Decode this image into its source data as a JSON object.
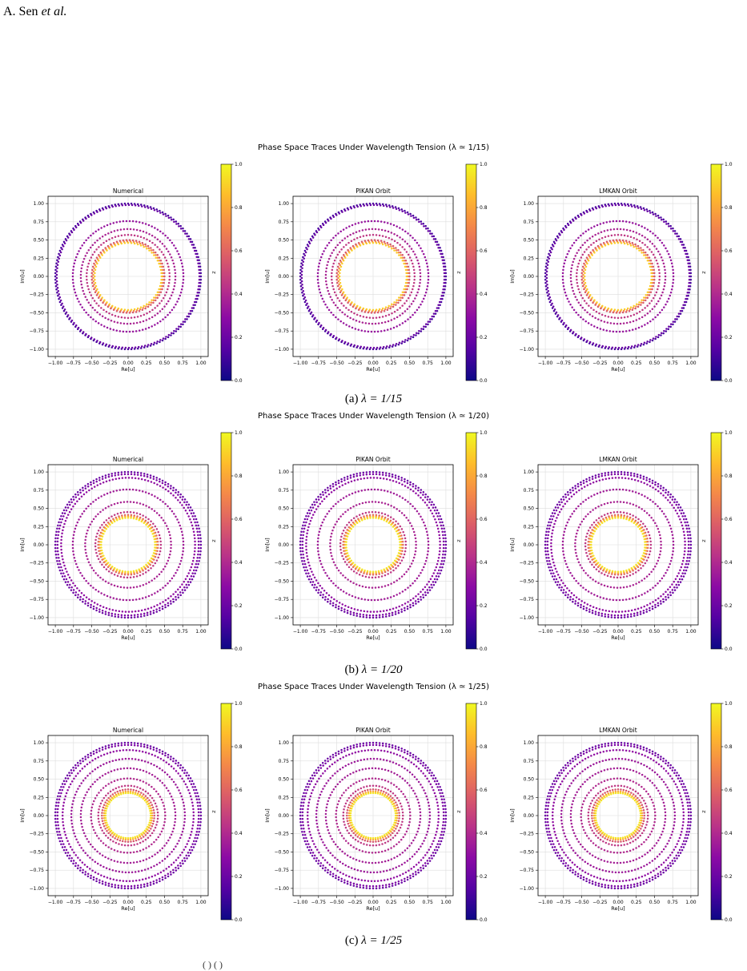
{
  "header": {
    "author_prefix": "A. Sen ",
    "author_suffix": "et al."
  },
  "colors": {
    "colormap": "plasma",
    "grid": "#dddddd"
  },
  "panel_titles": [
    "Numerical",
    "PIKAN Orbit",
    "LMKAN Orbit"
  ],
  "axis": {
    "xlabel": "Re[u]",
    "ylabel": "Im[u]",
    "colorbar_label": "z",
    "xticks": [
      "−1.00",
      "−0.75",
      "−0.50",
      "−0.25",
      "0.00",
      "0.25",
      "0.50",
      "0.75",
      "1.00"
    ],
    "yticks": [
      "1.00",
      "0.75",
      "0.50",
      "0.25",
      "0.00",
      "−0.25",
      "−0.50",
      "−0.75",
      "−1.00"
    ],
    "cbticks": [
      "1.0",
      "0.8",
      "0.6",
      "0.4",
      "0.2",
      "0.0"
    ]
  },
  "rows": [
    {
      "title": "Phase Space Traces Under Wavelength Tension (λ ≃ 1/15)",
      "caption_label": "(a) ",
      "caption_math": "λ = 1/15"
    },
    {
      "title": "Phase Space Traces Under Wavelength Tension (λ ≃ 1/20)",
      "caption_label": "(b) ",
      "caption_math": "λ = 1/20"
    },
    {
      "title": "Phase Space Traces Under Wavelength Tension (λ ≃ 1/25)",
      "caption_label": "(c) ",
      "caption_math": "λ = 1/25"
    }
  ],
  "footer_fragment": "( ) ( )",
  "chart_data": [
    {
      "type": "scatter",
      "title": "Numerical",
      "xlabel": "Re[u]",
      "ylabel": "Im[u]",
      "colorbar": "z",
      "xlim": [
        -1.1,
        1.1
      ],
      "ylim": [
        -1.1,
        1.1
      ],
      "grid": true,
      "rings": [
        {
          "r": 1.0,
          "z": 0.12
        },
        {
          "r": 0.98,
          "z": 0.2
        },
        {
          "r": 0.76,
          "z": 0.32
        },
        {
          "r": 0.65,
          "z": 0.38
        },
        {
          "r": 0.57,
          "z": 0.45
        },
        {
          "r": 0.5,
          "z": 0.55
        },
        {
          "r": 0.48,
          "z": 0.72
        },
        {
          "r": 0.46,
          "z": 0.9
        }
      ]
    },
    {
      "type": "scatter",
      "title": "PIKAN Orbit",
      "xlabel": "Re[u]",
      "ylabel": "Im[u]",
      "colorbar": "z",
      "xlim": [
        -1.1,
        1.1
      ],
      "ylim": [
        -1.1,
        1.1
      ],
      "grid": true,
      "rings": [
        {
          "r": 1.0,
          "z": 0.12
        },
        {
          "r": 0.98,
          "z": 0.2
        },
        {
          "r": 0.76,
          "z": 0.32
        },
        {
          "r": 0.65,
          "z": 0.38
        },
        {
          "r": 0.57,
          "z": 0.45
        },
        {
          "r": 0.5,
          "z": 0.55
        },
        {
          "r": 0.48,
          "z": 0.72
        },
        {
          "r": 0.46,
          "z": 0.9
        }
      ]
    },
    {
      "type": "scatter",
      "title": "LMKAN Orbit",
      "xlabel": "Re[u]",
      "ylabel": "Im[u]",
      "colorbar": "z",
      "xlim": [
        -1.1,
        1.1
      ],
      "ylim": [
        -1.1,
        1.1
      ],
      "grid": true,
      "rings": [
        {
          "r": 1.0,
          "z": 0.12
        },
        {
          "r": 0.98,
          "z": 0.2
        },
        {
          "r": 0.76,
          "z": 0.32
        },
        {
          "r": 0.65,
          "z": 0.38
        },
        {
          "r": 0.57,
          "z": 0.45
        },
        {
          "r": 0.5,
          "z": 0.55
        },
        {
          "r": 0.48,
          "z": 0.72
        },
        {
          "r": 0.46,
          "z": 0.9
        }
      ]
    },
    {
      "type": "scatter",
      "title": "Numerical",
      "xlabel": "Re[u]",
      "ylabel": "Im[u]",
      "colorbar": "z",
      "xlim": [
        -1.1,
        1.1
      ],
      "ylim": [
        -1.1,
        1.1
      ],
      "grid": true,
      "rings": [
        {
          "r": 1.0,
          "z": 0.2
        },
        {
          "r": 0.97,
          "z": 0.25
        },
        {
          "r": 0.92,
          "z": 0.3
        },
        {
          "r": 0.76,
          "z": 0.35
        },
        {
          "r": 0.59,
          "z": 0.38
        },
        {
          "r": 0.45,
          "z": 0.45
        },
        {
          "r": 0.41,
          "z": 0.6
        },
        {
          "r": 0.39,
          "z": 0.8
        },
        {
          "r": 0.37,
          "z": 0.95
        }
      ]
    },
    {
      "type": "scatter",
      "title": "PIKAN Orbit",
      "xlabel": "Re[u]",
      "ylabel": "Im[u]",
      "colorbar": "z",
      "xlim": [
        -1.1,
        1.1
      ],
      "ylim": [
        -1.1,
        1.1
      ],
      "grid": true,
      "rings": [
        {
          "r": 1.0,
          "z": 0.2
        },
        {
          "r": 0.97,
          "z": 0.25
        },
        {
          "r": 0.92,
          "z": 0.3
        },
        {
          "r": 0.76,
          "z": 0.35
        },
        {
          "r": 0.59,
          "z": 0.38
        },
        {
          "r": 0.45,
          "z": 0.45
        },
        {
          "r": 0.41,
          "z": 0.6
        },
        {
          "r": 0.39,
          "z": 0.8
        },
        {
          "r": 0.37,
          "z": 0.95
        }
      ]
    },
    {
      "type": "scatter",
      "title": "LMKAN Orbit",
      "xlabel": "Re[u]",
      "ylabel": "Im[u]",
      "colorbar": "z",
      "xlim": [
        -1.1,
        1.1
      ],
      "ylim": [
        -1.1,
        1.1
      ],
      "grid": true,
      "rings": [
        {
          "r": 1.0,
          "z": 0.2
        },
        {
          "r": 0.97,
          "z": 0.25
        },
        {
          "r": 0.92,
          "z": 0.3
        },
        {
          "r": 0.76,
          "z": 0.35
        },
        {
          "r": 0.59,
          "z": 0.38
        },
        {
          "r": 0.45,
          "z": 0.45
        },
        {
          "r": 0.41,
          "z": 0.6
        },
        {
          "r": 0.39,
          "z": 0.8
        },
        {
          "r": 0.37,
          "z": 0.95
        }
      ]
    },
    {
      "type": "scatter",
      "title": "Numerical",
      "xlabel": "Re[u]",
      "ylabel": "Im[u]",
      "colorbar": "z",
      "xlim": [
        -1.1,
        1.1
      ],
      "ylim": [
        -1.1,
        1.1
      ],
      "grid": true,
      "rings": [
        {
          "r": 1.0,
          "z": 0.2
        },
        {
          "r": 0.97,
          "z": 0.25
        },
        {
          "r": 0.9,
          "z": 0.3
        },
        {
          "r": 0.78,
          "z": 0.34
        },
        {
          "r": 0.65,
          "z": 0.36
        },
        {
          "r": 0.51,
          "z": 0.4
        },
        {
          "r": 0.41,
          "z": 0.45
        },
        {
          "r": 0.36,
          "z": 0.55
        },
        {
          "r": 0.33,
          "z": 0.8
        },
        {
          "r": 0.31,
          "z": 0.95
        }
      ]
    },
    {
      "type": "scatter",
      "title": "PIKAN Orbit",
      "xlabel": "Re[u]",
      "ylabel": "Im[u]",
      "colorbar": "z",
      "xlim": [
        -1.1,
        1.1
      ],
      "ylim": [
        -1.1,
        1.1
      ],
      "grid": true,
      "rings": [
        {
          "r": 1.0,
          "z": 0.2
        },
        {
          "r": 0.97,
          "z": 0.25
        },
        {
          "r": 0.9,
          "z": 0.3
        },
        {
          "r": 0.78,
          "z": 0.34
        },
        {
          "r": 0.65,
          "z": 0.36
        },
        {
          "r": 0.51,
          "z": 0.4
        },
        {
          "r": 0.41,
          "z": 0.45
        },
        {
          "r": 0.36,
          "z": 0.55
        },
        {
          "r": 0.33,
          "z": 0.8
        },
        {
          "r": 0.31,
          "z": 0.95
        }
      ]
    },
    {
      "type": "scatter",
      "title": "LMKAN Orbit",
      "xlabel": "Re[u]",
      "ylabel": "Im[u]",
      "colorbar": "z",
      "xlim": [
        -1.1,
        1.1
      ],
      "ylim": [
        -1.1,
        1.1
      ],
      "grid": true,
      "rings": [
        {
          "r": 1.0,
          "z": 0.2
        },
        {
          "r": 0.97,
          "z": 0.25
        },
        {
          "r": 0.9,
          "z": 0.3
        },
        {
          "r": 0.78,
          "z": 0.34
        },
        {
          "r": 0.65,
          "z": 0.36
        },
        {
          "r": 0.51,
          "z": 0.4
        },
        {
          "r": 0.41,
          "z": 0.45
        },
        {
          "r": 0.36,
          "z": 0.55
        },
        {
          "r": 0.33,
          "z": 0.8
        },
        {
          "r": 0.31,
          "z": 0.95
        }
      ]
    }
  ]
}
